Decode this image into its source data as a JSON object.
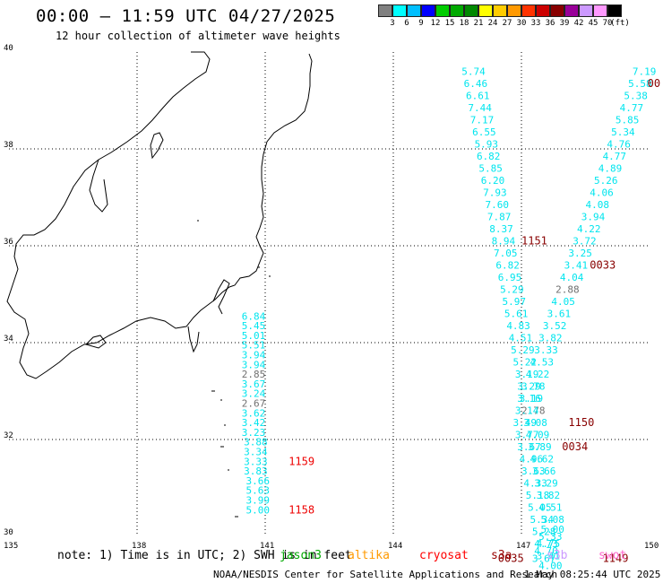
{
  "header": {
    "title": "00:00 – 11:59 UTC 04/27/2025",
    "subtitle": "12 hour collection of altimeter wave heights"
  },
  "legend": {
    "colors": [
      "#808080",
      "#00ffff",
      "#00bfff",
      "#0000ff",
      "#00cc00",
      "#00aa00",
      "#008800",
      "#ffff00",
      "#ffcc00",
      "#ff9900",
      "#ff3300",
      "#cc0000",
      "#880000",
      "#990099",
      "#cc99ff",
      "#ff99ff",
      "#000000"
    ],
    "labels": [
      "3",
      "6",
      "9",
      "12",
      "15",
      "18",
      "21",
      "24",
      "27",
      "30",
      "33",
      "36",
      "39",
      "42",
      "45",
      "70",
      "(ft)"
    ]
  },
  "chart_data": {
    "type": "scatter",
    "xlim": [
      135,
      150
    ],
    "ylim": [
      30,
      40
    ],
    "x_ticks": [
      "135",
      "138",
      "141",
      "144",
      "147",
      "150"
    ],
    "y_ticks": [
      "40",
      "38",
      "36",
      "34",
      "32",
      "30"
    ],
    "tracks": [
      {
        "color": "#00e5ee",
        "points": [
          {
            "lon": 140.45,
            "lat": 34.55,
            "v": "6.84"
          },
          {
            "lon": 140.45,
            "lat": 34.35,
            "v": "5.45"
          },
          {
            "lon": 140.45,
            "lat": 34.15,
            "v": "5.01"
          },
          {
            "lon": 140.45,
            "lat": 33.95,
            "v": "5.51"
          },
          {
            "lon": 140.45,
            "lat": 33.75,
            "v": "3.94"
          },
          {
            "lon": 140.45,
            "lat": 33.55,
            "v": "3.94"
          },
          {
            "lon": 140.45,
            "lat": 33.35,
            "v": "2.85",
            "c": "#707070"
          },
          {
            "lon": 140.45,
            "lat": 33.15,
            "v": "3.67"
          },
          {
            "lon": 140.45,
            "lat": 32.95,
            "v": "3.24"
          },
          {
            "lon": 140.45,
            "lat": 32.75,
            "v": "2.67",
            "c": "#707070"
          },
          {
            "lon": 140.45,
            "lat": 32.55,
            "v": "3.62"
          },
          {
            "lon": 140.45,
            "lat": 32.35,
            "v": "3.42"
          },
          {
            "lon": 140.45,
            "lat": 32.15,
            "v": "3.23"
          },
          {
            "lon": 140.5,
            "lat": 31.95,
            "v": "3.88"
          },
          {
            "lon": 140.5,
            "lat": 31.75,
            "v": "3.34"
          },
          {
            "lon": 140.5,
            "lat": 31.55,
            "v": "3.33"
          },
          {
            "lon": 140.5,
            "lat": 31.35,
            "v": "3.83"
          },
          {
            "lon": 140.55,
            "lat": 31.15,
            "v": "3.66"
          },
          {
            "lon": 140.55,
            "lat": 30.95,
            "v": "5.63"
          },
          {
            "lon": 140.55,
            "lat": 30.75,
            "v": "3.99"
          },
          {
            "lon": 140.55,
            "lat": 30.55,
            "v": "5.00"
          }
        ]
      },
      {
        "color": "#00e5ee",
        "points": [
          {
            "lon": 145.6,
            "lat": 39.6,
            "v": "5.74"
          },
          {
            "lon": 145.65,
            "lat": 39.35,
            "v": "6.46"
          },
          {
            "lon": 145.7,
            "lat": 39.1,
            "v": "6.61"
          },
          {
            "lon": 145.75,
            "lat": 38.85,
            "v": "7.44"
          },
          {
            "lon": 145.8,
            "lat": 38.6,
            "v": "7.17"
          },
          {
            "lon": 145.85,
            "lat": 38.35,
            "v": "6.55"
          },
          {
            "lon": 145.9,
            "lat": 38.1,
            "v": "5.93"
          },
          {
            "lon": 145.95,
            "lat": 37.85,
            "v": "6.82"
          },
          {
            "lon": 146.0,
            "lat": 37.6,
            "v": "5.85"
          },
          {
            "lon": 146.05,
            "lat": 37.35,
            "v": "6.20"
          },
          {
            "lon": 146.1,
            "lat": 37.1,
            "v": "7.93"
          },
          {
            "lon": 146.15,
            "lat": 36.85,
            "v": "7.60"
          },
          {
            "lon": 146.2,
            "lat": 36.6,
            "v": "7.87"
          },
          {
            "lon": 146.25,
            "lat": 36.35,
            "v": "8.37"
          },
          {
            "lon": 146.3,
            "lat": 36.1,
            "v": "8.94"
          },
          {
            "lon": 146.35,
            "lat": 35.85,
            "v": "7.05"
          },
          {
            "lon": 146.4,
            "lat": 35.6,
            "v": "6.82"
          },
          {
            "lon": 146.45,
            "lat": 35.35,
            "v": "6.95"
          },
          {
            "lon": 146.5,
            "lat": 35.1,
            "v": "5.29"
          },
          {
            "lon": 146.55,
            "lat": 34.85,
            "v": "5.97"
          },
          {
            "lon": 146.6,
            "lat": 34.6,
            "v": "5.61"
          },
          {
            "lon": 146.65,
            "lat": 34.35,
            "v": "4.83"
          },
          {
            "lon": 146.7,
            "lat": 34.1,
            "v": "4.51"
          },
          {
            "lon": 146.75,
            "lat": 33.85,
            "v": "5.29"
          },
          {
            "lon": 146.8,
            "lat": 33.6,
            "v": "5.22"
          },
          {
            "lon": 146.85,
            "lat": 33.35,
            "v": "3.19"
          },
          {
            "lon": 146.9,
            "lat": 33.1,
            "v": "3.29"
          },
          {
            "lon": 146.95,
            "lat": 32.85,
            "v": "3.19"
          },
          {
            "lon": 147.0,
            "lat": 32.6,
            "v": "2.78",
            "c": "#707070"
          },
          {
            "lon": 147.05,
            "lat": 32.35,
            "v": "3.08"
          },
          {
            "lon": 147.1,
            "lat": 32.1,
            "v": "4.09"
          },
          {
            "lon": 147.15,
            "lat": 31.85,
            "v": "3.89"
          },
          {
            "lon": 147.2,
            "lat": 31.6,
            "v": "4.62"
          },
          {
            "lon": 147.25,
            "lat": 31.35,
            "v": "3.66"
          },
          {
            "lon": 147.3,
            "lat": 31.1,
            "v": "3.29"
          },
          {
            "lon": 147.35,
            "lat": 30.85,
            "v": "3.82"
          },
          {
            "lon": 147.4,
            "lat": 30.6,
            "v": "4.51"
          },
          {
            "lon": 147.45,
            "lat": 30.35,
            "v": "5.08"
          },
          {
            "lon": 147.45,
            "lat": 30.15,
            "v": "5.00"
          },
          {
            "lon": 147.4,
            "lat": 30.0,
            "v": "5.33"
          },
          {
            "lon": 147.35,
            "lat": 29.85,
            "v": "4.75"
          },
          {
            "lon": 147.3,
            "lat": 29.7,
            "v": "4.70"
          },
          {
            "lon": 147.25,
            "lat": 29.55,
            "v": "3.67"
          }
        ]
      },
      {
        "color": "#00e5ee",
        "points": [
          {
            "lon": 149.6,
            "lat": 39.6,
            "v": "7.19"
          },
          {
            "lon": 149.5,
            "lat": 39.35,
            "v": "5.58"
          },
          {
            "lon": 149.4,
            "lat": 39.1,
            "v": "5.38"
          },
          {
            "lon": 149.3,
            "lat": 38.85,
            "v": "4.77"
          },
          {
            "lon": 149.2,
            "lat": 38.6,
            "v": "5.85"
          },
          {
            "lon": 149.1,
            "lat": 38.35,
            "v": "5.34"
          },
          {
            "lon": 149.0,
            "lat": 38.1,
            "v": "4.76"
          },
          {
            "lon": 148.9,
            "lat": 37.85,
            "v": "4.77"
          },
          {
            "lon": 148.8,
            "lat": 37.6,
            "v": "4.89"
          },
          {
            "lon": 148.7,
            "lat": 37.35,
            "v": "5.26"
          },
          {
            "lon": 148.6,
            "lat": 37.1,
            "v": "4.06"
          },
          {
            "lon": 148.5,
            "lat": 36.85,
            "v": "4.08"
          },
          {
            "lon": 148.4,
            "lat": 36.6,
            "v": "3.94"
          },
          {
            "lon": 148.3,
            "lat": 36.35,
            "v": "4.22"
          },
          {
            "lon": 148.2,
            "lat": 36.1,
            "v": "3.72"
          },
          {
            "lon": 148.1,
            "lat": 35.85,
            "v": "3.25"
          },
          {
            "lon": 148.0,
            "lat": 35.6,
            "v": "3.41"
          },
          {
            "lon": 147.9,
            "lat": 35.35,
            "v": "4.04"
          },
          {
            "lon": 147.8,
            "lat": 35.1,
            "v": "2.88",
            "c": "#707070"
          },
          {
            "lon": 147.7,
            "lat": 34.85,
            "v": "4.05"
          },
          {
            "lon": 147.6,
            "lat": 34.6,
            "v": "3.61"
          },
          {
            "lon": 147.5,
            "lat": 34.35,
            "v": "3.52"
          },
          {
            "lon": 147.4,
            "lat": 34.1,
            "v": "3.82"
          },
          {
            "lon": 147.3,
            "lat": 33.85,
            "v": "3.33"
          },
          {
            "lon": 147.2,
            "lat": 33.6,
            "v": "4.53"
          },
          {
            "lon": 147.1,
            "lat": 33.35,
            "v": "4.22"
          },
          {
            "lon": 147.0,
            "lat": 33.1,
            "v": "3.78"
          },
          {
            "lon": 146.9,
            "lat": 32.85,
            "v": "3.16"
          },
          {
            "lon": 146.85,
            "lat": 32.6,
            "v": "3.14"
          },
          {
            "lon": 146.8,
            "lat": 32.35,
            "v": "3.49"
          },
          {
            "lon": 146.85,
            "lat": 32.1,
            "v": "3.77"
          },
          {
            "lon": 146.9,
            "lat": 31.85,
            "v": "3.67"
          },
          {
            "lon": 146.95,
            "lat": 31.6,
            "v": "4.96"
          },
          {
            "lon": 147.0,
            "lat": 31.35,
            "v": "3.63"
          },
          {
            "lon": 147.05,
            "lat": 31.1,
            "v": "4.33"
          },
          {
            "lon": 147.1,
            "lat": 30.85,
            "v": "5.18"
          },
          {
            "lon": 147.15,
            "lat": 30.6,
            "v": "5.05"
          },
          {
            "lon": 147.2,
            "lat": 30.35,
            "v": "5.34"
          },
          {
            "lon": 147.25,
            "lat": 30.1,
            "v": "5.28"
          },
          {
            "lon": 147.3,
            "lat": 29.85,
            "v": "4.73"
          },
          {
            "lon": 147.35,
            "lat": 29.6,
            "v": "3.41"
          },
          {
            "lon": 147.4,
            "lat": 29.4,
            "v": "4.00"
          }
        ]
      }
    ],
    "time_labels": [
      {
        "lon": 141.55,
        "lat": 31.55,
        "v": "1159",
        "c": "#ee0000"
      },
      {
        "lon": 141.55,
        "lat": 30.55,
        "v": "1158",
        "c": "#ee0000"
      },
      {
        "lon": 147.0,
        "lat": 36.1,
        "v": "1151",
        "c": "#880000"
      },
      {
        "lon": 148.6,
        "lat": 35.6,
        "v": "0033",
        "c": "#880000"
      },
      {
        "lon": 148.1,
        "lat": 32.35,
        "v": "1150",
        "c": "#880000"
      },
      {
        "lon": 147.95,
        "lat": 31.85,
        "v": "0034",
        "c": "#880000"
      },
      {
        "lon": 146.45,
        "lat": 29.55,
        "v": "0035",
        "c": "#880000"
      },
      {
        "lon": 148.9,
        "lat": 29.55,
        "v": "1149",
        "c": "#880000"
      },
      {
        "lon": 149.95,
        "lat": 39.35,
        "v": "00",
        "c": "#880000"
      }
    ]
  },
  "footer": {
    "note": "note: 1) Time is in UTC; 2) SWH is in feet",
    "satellites": [
      {
        "name": "jason3",
        "color": "#00aa00"
      },
      {
        "name": "altika",
        "color": "#ff9900"
      },
      {
        "name": "cryosat",
        "color": "#ff0000"
      },
      {
        "name": "s3a",
        "color": "#990000"
      },
      {
        "name": "s3b",
        "color": "#cc99ff"
      },
      {
        "name": "swot",
        "color": "#ff66cc"
      }
    ],
    "credit": "NOAA/NESDIS Center for Satellite Applications and Research",
    "timestamp": "1 May 08:25:44 UTC 2025"
  }
}
